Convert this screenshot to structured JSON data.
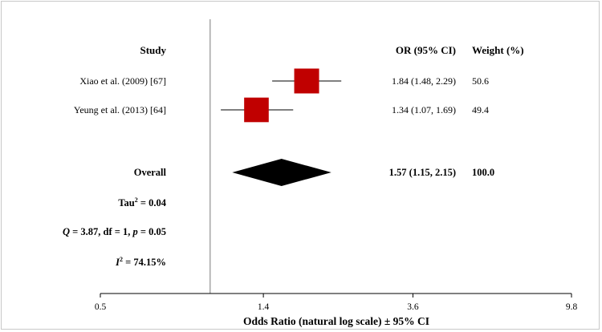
{
  "chart_data": {
    "type": "forest",
    "scale": "log",
    "xlabel": "Odds Ratio (natural log scale) ± 95% CI",
    "x_ticks": [
      0.5,
      1.4,
      3.6,
      9.8
    ],
    "x_tick_labels": [
      "0.5",
      "1.4",
      "3.6",
      "9.8"
    ],
    "xlim": [
      0.5,
      9.8
    ],
    "reference_line": 1.0,
    "headers": {
      "study": "Study",
      "or": "OR (95% CI)",
      "weight": "Weight (%)"
    },
    "studies": [
      {
        "label": "Xiao et al. (2009) [67]",
        "or": 1.84,
        "lower": 1.48,
        "upper": 2.29,
        "or_text": "1.84 (1.48, 2.29)",
        "weight": 50.6,
        "weight_text": "50.6"
      },
      {
        "label": "Yeung et al. (2013) [64]",
        "or": 1.34,
        "lower": 1.07,
        "upper": 1.69,
        "or_text": "1.34 (1.07, 1.69)",
        "weight": 49.4,
        "weight_text": "49.4"
      }
    ],
    "overall": {
      "label": "Overall",
      "or": 1.57,
      "lower": 1.15,
      "upper": 2.15,
      "or_text": "1.57 (1.15, 2.15)",
      "weight_text": "100.0"
    },
    "stats": {
      "tau2": {
        "prefix": "Tau",
        "sup": "2",
        "suffix": " = 0.04"
      },
      "q": {
        "q": "Q",
        "mid": " = 3.87, df = 1, ",
        "p": "p",
        "end": " = 0.05"
      },
      "i2": {
        "prefix": "I",
        "sup": "2",
        "suffix": " = 74.15%"
      }
    },
    "colors": {
      "box": "#c00000",
      "diamond": "#000000",
      "ci_line": "#000000",
      "ref_line": "#a6a6a6",
      "axis": "#000000"
    }
  }
}
